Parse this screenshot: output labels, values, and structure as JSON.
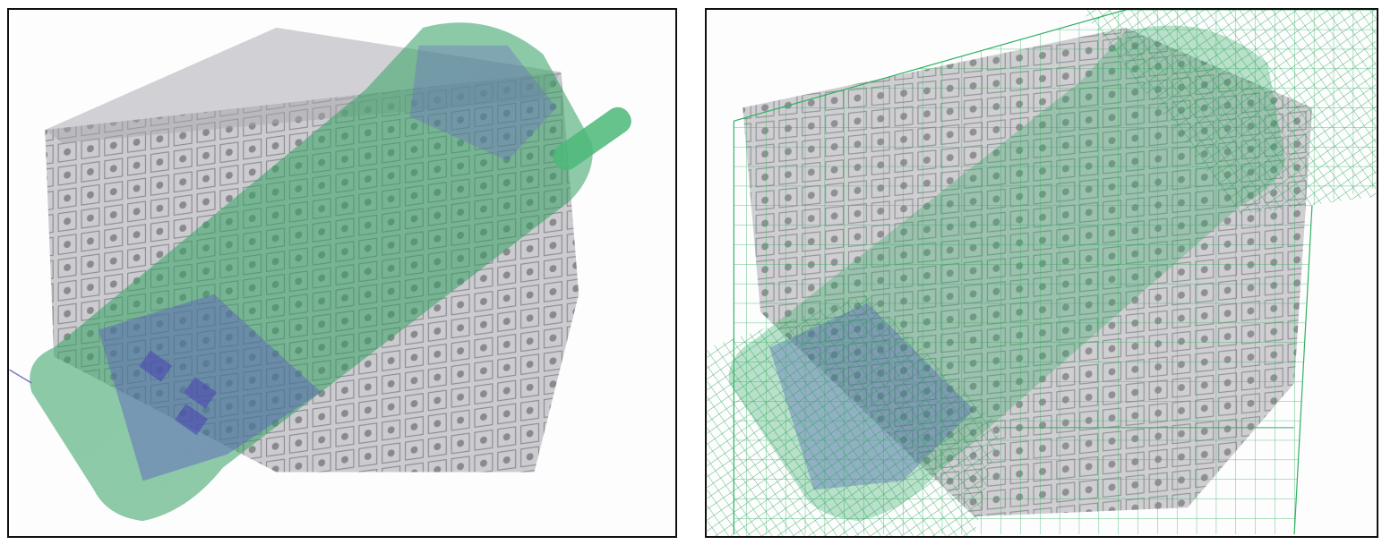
{
  "figure": {
    "panels": [
      {
        "id": "left",
        "description_name": "phone-and-mesh-block-render",
        "objects": [
          "translucent-lattice-block",
          "mobile-phone-model"
        ],
        "colors": {
          "background": "#fdfdfe",
          "lattice": "#8a8a8e",
          "phone": "#3fae6a",
          "phone_detail": "#6a64c8"
        }
      },
      {
        "id": "right",
        "description_name": "phone-and-mesh-block-with-bounding-boxes",
        "objects": [
          "translucent-lattice-block",
          "mobile-phone-model",
          "green-bounding-box-wireframe"
        ],
        "colors": {
          "background": "#fdfdfe",
          "lattice": "#8a8a8e",
          "phone": "#3fae6a",
          "wire": "#2fb060"
        }
      }
    ]
  }
}
